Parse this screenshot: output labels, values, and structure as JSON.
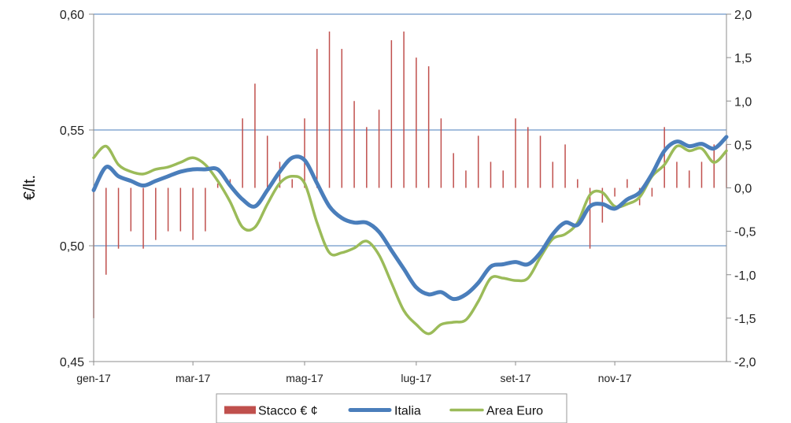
{
  "chart_data": {
    "type": "line",
    "xlabel": "",
    "ylabel": "€/lt.",
    "ylim": [
      0.45,
      0.6
    ],
    "y_ticks": [
      "0,45",
      "0,50",
      "0,55",
      "0,60"
    ],
    "y2lim": [
      -2.0,
      2.0
    ],
    "y2_ticks": [
      "-2,0",
      "-1,5",
      "-1,0",
      "-0,5",
      "0,0",
      "0,5",
      "1,0",
      "1,5",
      "2,0"
    ],
    "x_tick_labels": [
      "gen-17",
      "mar-17",
      "mag-17",
      "lug-17",
      "set-17",
      "nov-17"
    ],
    "x_tick_weeks": [
      0,
      8,
      17,
      26,
      34,
      42
    ],
    "grid": "horizontal",
    "legend_position": "bottom",
    "series": [
      {
        "name": "Stacco € ¢",
        "type": "bar",
        "axis": "right",
        "color": "#c0504d",
        "values": [
          -1.5,
          -1.0,
          -0.7,
          -0.5,
          -0.7,
          -0.6,
          -0.5,
          -0.5,
          -0.6,
          -0.5,
          0.05,
          0.1,
          0.8,
          1.2,
          0.6,
          0.3,
          0.1,
          0.8,
          1.6,
          1.8,
          1.6,
          1.0,
          0.7,
          0.9,
          1.7,
          1.8,
          1.5,
          1.4,
          0.8,
          0.4,
          0.2,
          0.6,
          0.3,
          0.2,
          0.8,
          0.7,
          0.6,
          0.3,
          0.5,
          0.1,
          -0.7,
          -0.4,
          -0.1,
          0.1,
          -0.2,
          -0.1,
          0.7,
          0.3,
          0.2,
          0.3,
          0.5,
          0.5
        ]
      },
      {
        "name": "Italia",
        "type": "line",
        "axis": "left",
        "color": "#4a7ebb",
        "values": [
          0.524,
          0.534,
          0.53,
          0.528,
          0.526,
          0.528,
          0.53,
          0.532,
          0.533,
          0.533,
          0.533,
          0.526,
          0.52,
          0.517,
          0.524,
          0.532,
          0.538,
          0.537,
          0.527,
          0.517,
          0.512,
          0.51,
          0.51,
          0.506,
          0.498,
          0.49,
          0.482,
          0.479,
          0.48,
          0.477,
          0.479,
          0.484,
          0.491,
          0.492,
          0.493,
          0.492,
          0.497,
          0.505,
          0.51,
          0.509,
          0.517,
          0.518,
          0.516,
          0.52,
          0.523,
          0.531,
          0.541,
          0.545,
          0.543,
          0.544,
          0.542,
          0.547
        ]
      },
      {
        "name": "Area Euro",
        "type": "line",
        "axis": "left",
        "color": "#9bbb59",
        "values": [
          0.538,
          0.543,
          0.535,
          0.532,
          0.531,
          0.533,
          0.534,
          0.536,
          0.538,
          0.535,
          0.528,
          0.519,
          0.508,
          0.508,
          0.518,
          0.527,
          0.53,
          0.527,
          0.51,
          0.497,
          0.497,
          0.499,
          0.502,
          0.496,
          0.484,
          0.472,
          0.466,
          0.462,
          0.466,
          0.467,
          0.468,
          0.476,
          0.486,
          0.486,
          0.485,
          0.486,
          0.495,
          0.503,
          0.505,
          0.51,
          0.522,
          0.523,
          0.517,
          0.518,
          0.521,
          0.53,
          0.535,
          0.543,
          0.541,
          0.542,
          0.536,
          0.541
        ]
      }
    ]
  }
}
